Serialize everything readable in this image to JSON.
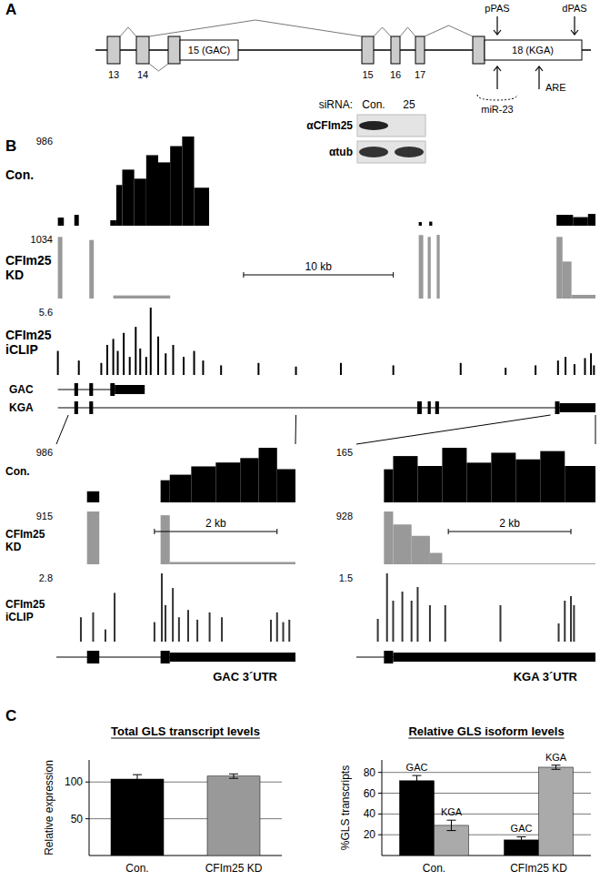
{
  "panel_labels": [
    "A",
    "B",
    "C"
  ],
  "gene_diagram": {
    "exon_numbers": [
      "13",
      "14",
      "15",
      "16",
      "17"
    ],
    "gac_exon": "15 (GAC)",
    "kga_exon": "18 (KGA)",
    "ppas": "pPAS",
    "dpas": "dPAS",
    "mir": "miR-23",
    "are": "ARE"
  },
  "blot": {
    "header": "siRNA:",
    "lanes": [
      "Con.",
      "25"
    ],
    "antibodies": [
      "αCFIm25",
      "αtub"
    ]
  },
  "browser": {
    "xlim": [
      0,
      36
    ],
    "scale_bar": {
      "label": "10 kb",
      "start": 12.5,
      "length": 10
    },
    "tracks": [
      {
        "name": "Con.",
        "max": 986,
        "color": "#000000",
        "segments": [
          [
            0.1,
            0.5,
            90
          ],
          [
            1.2,
            1.5,
            120
          ],
          [
            3.6,
            4.0,
            60
          ],
          [
            4.0,
            4.4,
            450
          ],
          [
            4.4,
            5.2,
            620
          ],
          [
            5.2,
            6.0,
            520
          ],
          [
            6.0,
            6.8,
            780
          ],
          [
            6.8,
            7.6,
            700
          ],
          [
            7.6,
            8.4,
            880
          ],
          [
            8.4,
            9.2,
            986
          ],
          [
            9.2,
            10.2,
            420
          ],
          [
            24.2,
            24.4,
            40
          ],
          [
            24.9,
            25.1,
            45
          ],
          [
            33.4,
            34.5,
            120
          ],
          [
            34.5,
            35.5,
            95
          ],
          [
            35.5,
            36,
            130
          ]
        ]
      },
      {
        "name": "CFIm25 KD",
        "max": 1034,
        "color": "#999999",
        "segments": [
          [
            0.1,
            0.4,
            1000
          ],
          [
            2.2,
            2.5,
            950
          ],
          [
            3.8,
            7.6,
            50
          ],
          [
            24.2,
            24.5,
            1030
          ],
          [
            24.8,
            25.0,
            1000
          ],
          [
            25.4,
            25.6,
            1034
          ],
          [
            33.4,
            33.8,
            1000
          ],
          [
            33.8,
            34.4,
            600
          ],
          [
            34.4,
            36,
            60
          ]
        ]
      },
      {
        "name": "CFIm25 iCLIP",
        "max": 5.6,
        "color": "#000000",
        "bars": [
          [
            0.1,
            2
          ],
          [
            1.5,
            1.2
          ],
          [
            3.0,
            1.0
          ],
          [
            3.4,
            2.5
          ],
          [
            3.8,
            3.0
          ],
          [
            4.1,
            2.0
          ],
          [
            4.5,
            3.5
          ],
          [
            4.9,
            1.5
          ],
          [
            5.3,
            4.0
          ],
          [
            5.6,
            2.2
          ],
          [
            6.0,
            1.5
          ],
          [
            6.3,
            5.6
          ],
          [
            6.8,
            3.2
          ],
          [
            7.3,
            1.8
          ],
          [
            7.8,
            2.5
          ],
          [
            8.5,
            1.5
          ],
          [
            9.2,
            2.0
          ],
          [
            9.8,
            1.2
          ],
          [
            11.0,
            0.8
          ],
          [
            13.5,
            1.0
          ],
          [
            16.0,
            0.7
          ],
          [
            19.0,
            1.0
          ],
          [
            22.5,
            0.8
          ],
          [
            27.0,
            1.0
          ],
          [
            30.0,
            0.6
          ],
          [
            32.0,
            0.8
          ],
          [
            33.5,
            1.2
          ],
          [
            34.0,
            1.5
          ],
          [
            34.6,
            0.9
          ],
          [
            35.3,
            1.4
          ],
          [
            35.7,
            1.8
          ],
          [
            35.9,
            0.8
          ]
        ]
      }
    ],
    "genes": [
      {
        "name": "GAC",
        "exons": [
          [
            1.2,
            1.45
          ],
          [
            2.2,
            2.45
          ],
          [
            3.6,
            3.9
          ]
        ],
        "utr": [
          [
            3.9,
            5.9
          ]
        ]
      },
      {
        "name": "KGA",
        "exons": [
          [
            1.2,
            1.45
          ],
          [
            2.2,
            2.45
          ],
          [
            24.1,
            24.4
          ],
          [
            24.8,
            25.0
          ],
          [
            25.3,
            25.55
          ],
          [
            33.3,
            33.6
          ]
        ],
        "utr": [
          [
            33.6,
            36
          ]
        ]
      }
    ]
  },
  "zooms": [
    {
      "xlim": [
        0,
        3.9
      ],
      "scale_bar": {
        "label": "2 kb",
        "start": 1.6,
        "length": 2
      },
      "tracks": [
        {
          "name": "Con.",
          "max": 986,
          "color": "#000000",
          "segments": [
            [
              0.5,
              0.7,
              200
            ],
            [
              1.7,
              1.85,
              400
            ],
            [
              1.85,
              2.2,
              500
            ],
            [
              2.2,
              2.6,
              650
            ],
            [
              2.6,
              3.0,
              720
            ],
            [
              3.0,
              3.3,
              800
            ],
            [
              3.3,
              3.6,
              986
            ],
            [
              3.6,
              3.9,
              600
            ]
          ]
        },
        {
          "name": "CFIm25 KD",
          "max": 915,
          "color": "#999999",
          "segments": [
            [
              0.5,
              0.7,
              915
            ],
            [
              1.7,
              1.85,
              850
            ],
            [
              1.85,
              3.9,
              40
            ]
          ]
        },
        {
          "name": "CFIm25 iCLIP",
          "max": 2.8,
          "color": "#333333",
          "bars": [
            [
              0.4,
              1.0
            ],
            [
              0.6,
              1.2
            ],
            [
              0.8,
              0.5
            ],
            [
              0.95,
              2.0
            ],
            [
              1.6,
              0.8
            ],
            [
              1.72,
              2.8
            ],
            [
              1.78,
              1.5
            ],
            [
              1.9,
              2.2
            ],
            [
              2.0,
              1.0
            ],
            [
              2.15,
              1.3
            ],
            [
              2.3,
              0.9
            ],
            [
              2.5,
              1.2
            ],
            [
              2.7,
              1.0
            ],
            [
              3.5,
              0.9
            ],
            [
              3.6,
              1.2
            ],
            [
              3.7,
              0.8
            ],
            [
              3.8,
              0.9
            ]
          ]
        }
      ],
      "gene": {
        "name": "GAC 3´UTR",
        "exons": [
          [
            0.5,
            0.7
          ],
          [
            1.7,
            1.85
          ]
        ],
        "utr": [
          [
            1.85,
            3.9
          ]
        ]
      }
    },
    {
      "xlim": [
        0,
        3.9
      ],
      "scale_bar": {
        "label": "2 kb",
        "start": 1.5,
        "length": 2
      },
      "tracks": [
        {
          "max": 165,
          "color": "#000000",
          "segments": [
            [
              0.45,
              0.6,
              100
            ],
            [
              0.6,
              1.0,
              140
            ],
            [
              1.0,
              1.4,
              110
            ],
            [
              1.4,
              1.8,
              165
            ],
            [
              1.8,
              2.2,
              120
            ],
            [
              2.2,
              2.6,
              150
            ],
            [
              2.6,
              3.0,
              130
            ],
            [
              3.0,
              3.4,
              155
            ],
            [
              3.4,
              3.9,
              110
            ]
          ]
        },
        {
          "max": 928,
          "color": "#999999",
          "segments": [
            [
              0.45,
              0.6,
              928
            ],
            [
              0.6,
              0.9,
              700
            ],
            [
              0.9,
              1.2,
              500
            ],
            [
              1.2,
              1.4,
              200
            ],
            [
              1.4,
              3.9,
              15
            ]
          ]
        },
        {
          "max": 1.5,
          "color": "#333333",
          "bars": [
            [
              0.35,
              0.5
            ],
            [
              0.5,
              1.5
            ],
            [
              0.6,
              0.9
            ],
            [
              0.75,
              1.1
            ],
            [
              0.9,
              0.9
            ],
            [
              1.0,
              1.2
            ],
            [
              1.2,
              0.8
            ],
            [
              1.45,
              0.8
            ],
            [
              2.35,
              0.8
            ],
            [
              3.3,
              0.4
            ],
            [
              3.4,
              0.9
            ],
            [
              3.5,
              1.0
            ],
            [
              3.55,
              0.8
            ]
          ]
        }
      ],
      "gene": {
        "name": "KGA 3´UTR",
        "exons": [
          [
            0.45,
            0.6
          ]
        ],
        "utr": [
          [
            0.6,
            3.9
          ]
        ]
      }
    }
  ],
  "chart_data": [
    {
      "type": "bar",
      "title": "Total GLS transcript levels",
      "categories": [
        "Con.",
        "CFIm25 KD"
      ],
      "values": [
        104,
        108
      ],
      "errors": [
        6,
        3
      ],
      "colors": [
        "#000000",
        "#999999"
      ],
      "y_label": "Relative expression",
      "ylim": [
        0,
        130
      ],
      "yticks": [
        50,
        100
      ],
      "grid": true
    },
    {
      "type": "bar",
      "title": "Relative GLS isoform levels",
      "categories": [
        "Con.",
        "CFIm25 KD"
      ],
      "series": [
        {
          "name": "GAC",
          "color": "#000000",
          "values": [
            72,
            15
          ],
          "errors": [
            5,
            3
          ]
        },
        {
          "name": "KGA",
          "color": "#aaaaaa",
          "values": [
            29,
            85
          ],
          "errors": [
            5,
            2
          ]
        }
      ],
      "y_label": "%GLS transcripts",
      "ylim": [
        0,
        92
      ],
      "yticks": [
        20,
        40,
        60,
        80
      ],
      "grid": true
    }
  ]
}
